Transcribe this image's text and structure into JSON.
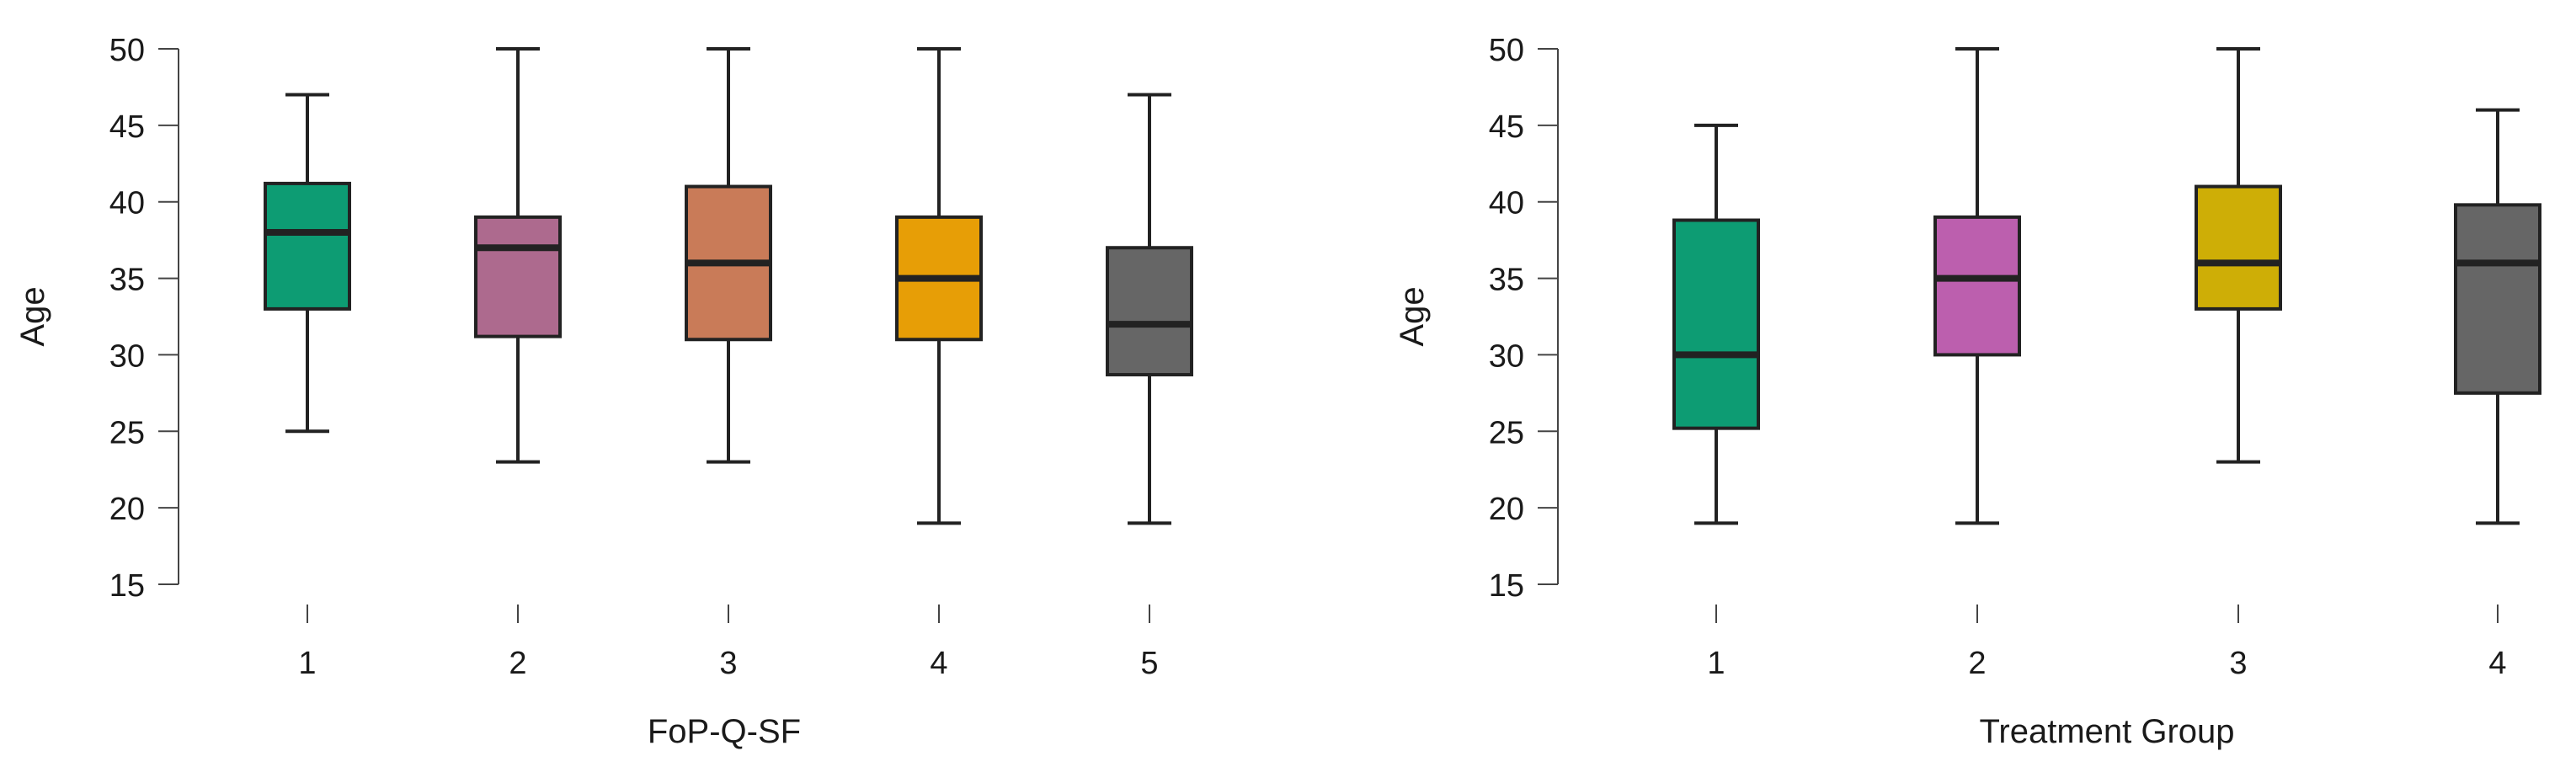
{
  "chart_data": [
    {
      "type": "box",
      "xlabel": "FoP-Q-SF",
      "ylabel": "Age",
      "ylim": [
        15,
        50
      ],
      "yticks": [
        15,
        20,
        25,
        30,
        35,
        40,
        45,
        50
      ],
      "categories": [
        "1",
        "2",
        "3",
        "4",
        "5"
      ],
      "boxes": [
        {
          "category": "1",
          "min": 25,
          "q1": 33,
          "median": 38,
          "q3": 41.2,
          "max": 47,
          "color": "#0d9c73"
        },
        {
          "category": "2",
          "min": 23,
          "q1": 31.2,
          "median": 37,
          "q3": 39,
          "max": 50,
          "color": "#ad6a8e"
        },
        {
          "category": "3",
          "min": 23,
          "q1": 31,
          "median": 36,
          "q3": 41,
          "max": 50,
          "color": "#c97b58"
        },
        {
          "category": "4",
          "min": 19,
          "q1": 31,
          "median": 35,
          "q3": 39,
          "max": 50,
          "color": "#e79e06"
        },
        {
          "category": "5",
          "min": 19,
          "q1": 28.7,
          "median": 32,
          "q3": 37,
          "max": 47,
          "color": "#666666"
        }
      ]
    },
    {
      "type": "box",
      "xlabel": "Treatment Group",
      "ylabel": "Age",
      "ylim": [
        15,
        50
      ],
      "yticks": [
        15,
        20,
        25,
        30,
        35,
        40,
        45,
        50
      ],
      "categories": [
        "1",
        "2",
        "3",
        "4"
      ],
      "boxes": [
        {
          "category": "1",
          "min": 19,
          "q1": 25.2,
          "median": 30,
          "q3": 38.8,
          "max": 45,
          "color": "#0d9c73"
        },
        {
          "category": "2",
          "min": 19,
          "q1": 30,
          "median": 35,
          "q3": 39,
          "max": 50,
          "color": "#bc5fae"
        },
        {
          "category": "3",
          "min": 23,
          "q1": 33,
          "median": 36,
          "q3": 41,
          "max": 50,
          "color": "#ceae06"
        },
        {
          "category": "4",
          "min": 19,
          "q1": 27.5,
          "median": 36,
          "q3": 39.8,
          "max": 46,
          "color": "#666666"
        }
      ]
    }
  ]
}
